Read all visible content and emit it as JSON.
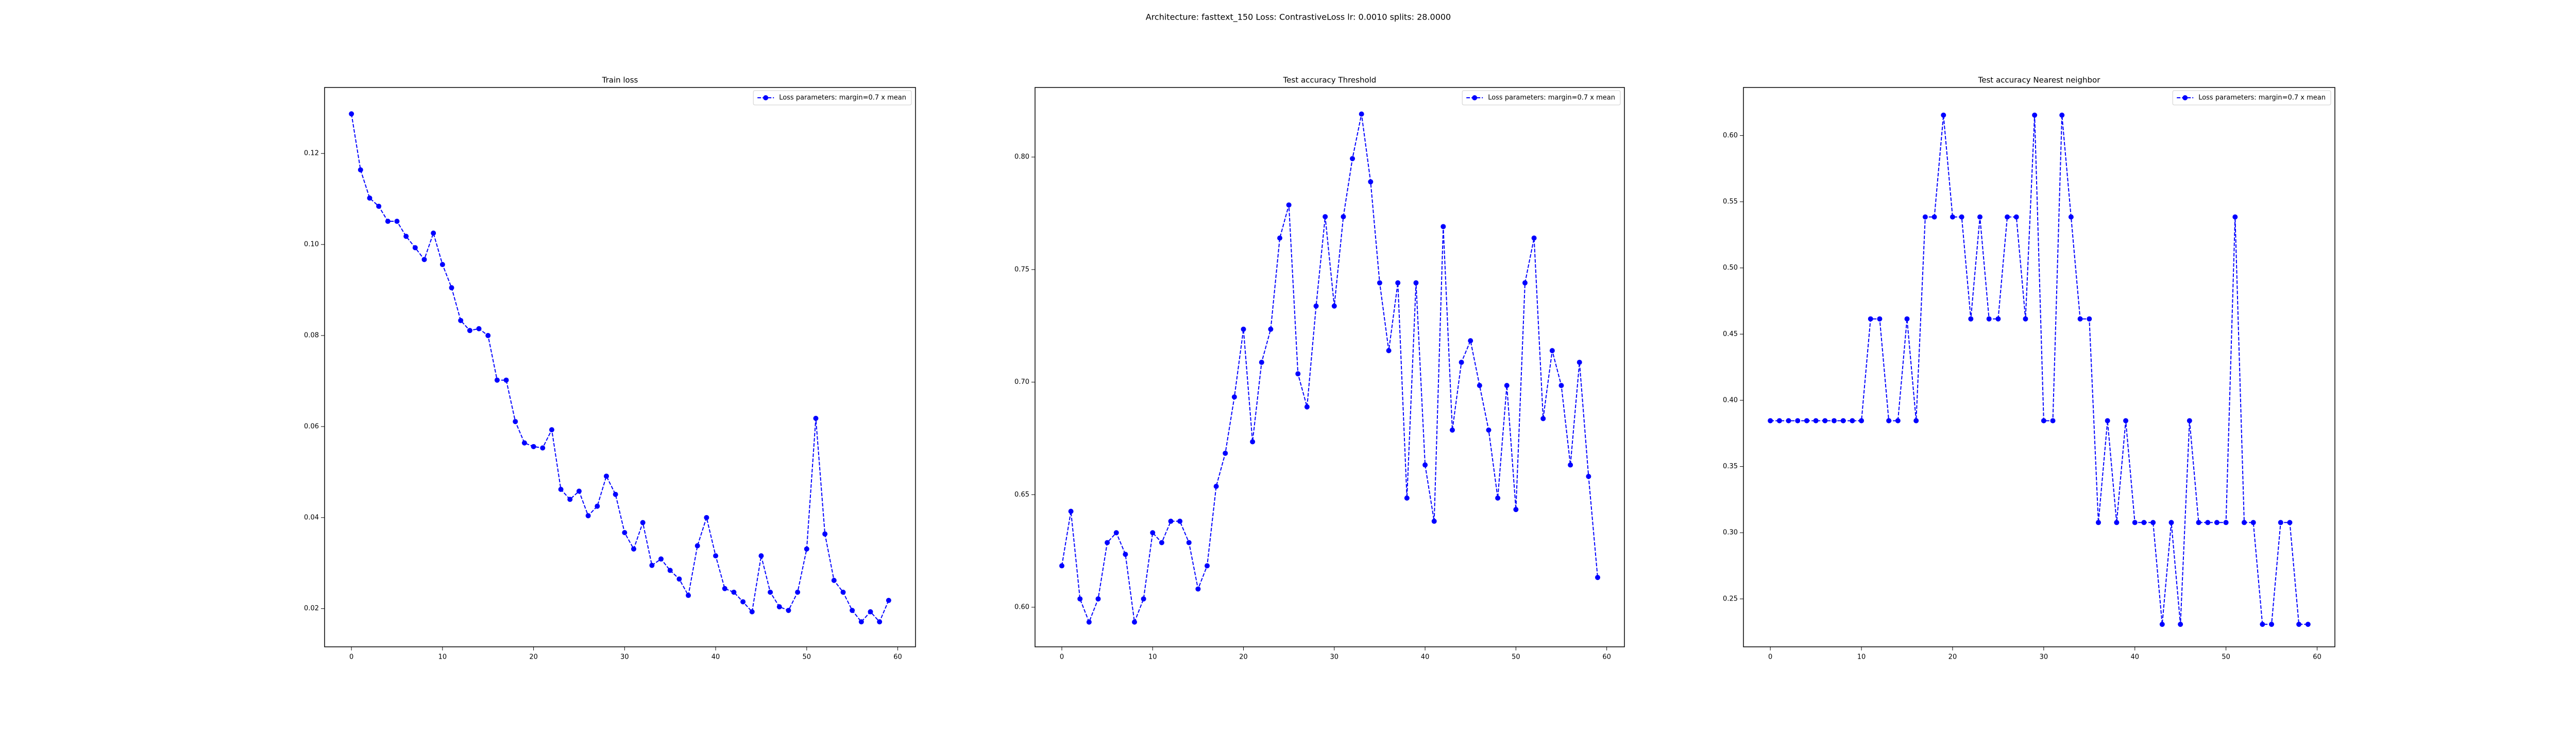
{
  "title": "Architecture: fasttext_150 Loss: ContrastiveLoss lr: 0.0010 splits: 28.0000",
  "chart_data": [
    {
      "type": "line",
      "title": "Train loss",
      "legend": "upper right",
      "linestyle": "dashed",
      "marker": "o",
      "xlim": [
        -2.95,
        61.95
      ],
      "xticks": [
        0,
        10,
        20,
        30,
        40,
        50,
        60
      ],
      "ylim": [
        0.0116,
        0.1345
      ],
      "yticks": [
        0.02,
        0.04,
        0.06,
        0.08,
        {
          "value": 0.1,
          "label": "0.10"
        },
        0.12
      ],
      "x": [
        0,
        1,
        2,
        3,
        4,
        5,
        6,
        7,
        8,
        9,
        10,
        11,
        12,
        13,
        14,
        15,
        16,
        17,
        18,
        19,
        20,
        21,
        22,
        23,
        24,
        25,
        26,
        27,
        28,
        29,
        30,
        31,
        32,
        33,
        34,
        35,
        36,
        37,
        38,
        39,
        40,
        41,
        42,
        43,
        44,
        45,
        46,
        47,
        48,
        49,
        50,
        51,
        52,
        53,
        54,
        55,
        56,
        57,
        58,
        59
      ],
      "series": [
        {
          "name": "Loss parameters: margin=0.7 x mean",
          "color": "blue",
          "values": [
            0.1287,
            0.1164,
            0.1102,
            0.1084,
            0.1051,
            0.1051,
            0.1018,
            0.0993,
            0.0967,
            0.1025,
            0.0956,
            0.0905,
            0.0833,
            0.0811,
            0.0815,
            0.08,
            0.0702,
            0.0702,
            0.0611,
            0.0564,
            0.0556,
            0.0553,
            0.0593,
            0.0462,
            0.044,
            0.0458,
            0.0404,
            0.0425,
            0.0491,
            0.0451,
            0.0367,
            0.0331,
            0.0389,
            0.0295,
            0.0309,
            0.0284,
            0.0265,
            0.0229,
            0.0338,
            0.04,
            0.0316,
            0.0244,
            0.0236,
            0.0215,
            0.0193,
            0.0316,
            0.0236,
            0.0204,
            0.0196,
            0.0236,
            0.0331,
            0.0618,
            0.0364,
            0.0262,
            0.0236,
            0.0196,
            0.0171,
            0.0193,
            0.0171,
            0.0218
          ]
        }
      ]
    },
    {
      "type": "line",
      "title": "Test accuracy Threshold",
      "legend": "upper right",
      "linestyle": "dashed",
      "marker": "o",
      "xlim": [
        -2.95,
        61.95
      ],
      "xticks": [
        0,
        10,
        20,
        30,
        40,
        50,
        60
      ],
      "ylim": [
        0.5824,
        0.8309
      ],
      "yticks": [
        {
          "value": 0.6,
          "label": "0.60"
        },
        0.65,
        {
          "value": 0.7,
          "label": "0.70"
        },
        0.75,
        {
          "value": 0.8,
          "label": "0.80"
        }
      ],
      "x": [
        0,
        1,
        2,
        3,
        4,
        5,
        6,
        7,
        8,
        9,
        10,
        11,
        12,
        13,
        14,
        15,
        16,
        17,
        18,
        19,
        20,
        21,
        22,
        23,
        24,
        25,
        26,
        27,
        28,
        29,
        30,
        31,
        32,
        33,
        34,
        35,
        36,
        37,
        38,
        39,
        40,
        41,
        42,
        43,
        44,
        45,
        46,
        47,
        48,
        49,
        50,
        51,
        52,
        53,
        54,
        55,
        56,
        57,
        58,
        59
      ],
      "series": [
        {
          "name": "Loss parameters: margin=0.7 x mean",
          "color": "blue",
          "values": [
            0.6184,
            0.6426,
            0.6037,
            0.5934,
            0.6037,
            0.6287,
            0.6331,
            0.6235,
            0.5934,
            0.6037,
            0.6331,
            0.6287,
            0.6382,
            0.6382,
            0.6287,
            0.6081,
            0.6184,
            0.6537,
            0.6684,
            0.6934,
            0.7235,
            0.6735,
            0.7088,
            0.7235,
            0.764,
            0.7787,
            0.7037,
            0.689,
            0.7338,
            0.7735,
            0.7338,
            0.7735,
            0.7993,
            0.8191,
            0.789,
            0.7441,
            0.714,
            0.7441,
            0.6485,
            0.7441,
            0.6632,
            0.6382,
            0.7691,
            0.6787,
            0.7088,
            0.7184,
            0.6985,
            0.6787,
            0.6485,
            0.6985,
            0.6434,
            0.7441,
            0.764,
            0.6838,
            0.714,
            0.6985,
            0.6632,
            0.7088,
            0.6581,
            0.6132
          ]
        }
      ]
    },
    {
      "type": "line",
      "title": "Test accuracy Nearest neighbor",
      "legend": "upper right",
      "linestyle": "dashed",
      "marker": "o",
      "xlim": [
        -2.95,
        61.95
      ],
      "xticks": [
        0,
        10,
        20,
        30,
        40,
        50,
        60
      ],
      "ylim": [
        0.2138,
        0.6363
      ],
      "yticks": [
        0.25,
        {
          "value": 0.3,
          "label": "0.30"
        },
        0.35,
        {
          "value": 0.4,
          "label": "0.40"
        },
        0.45,
        {
          "value": 0.5,
          "label": "0.50"
        },
        0.55,
        {
          "value": 0.6,
          "label": "0.60"
        }
      ],
      "x": [
        0,
        1,
        2,
        3,
        4,
        5,
        6,
        7,
        8,
        9,
        10,
        11,
        12,
        13,
        14,
        15,
        16,
        17,
        18,
        19,
        20,
        21,
        22,
        23,
        24,
        25,
        26,
        27,
        28,
        29,
        30,
        31,
        32,
        33,
        34,
        35,
        36,
        37,
        38,
        39,
        40,
        41,
        42,
        43,
        44,
        45,
        46,
        47,
        48,
        49,
        50,
        51,
        52,
        53,
        54,
        55,
        56,
        57,
        58,
        59
      ],
      "series": [
        {
          "name": "Loss parameters: margin=0.7 x mean",
          "color": "blue",
          "values": [
            0.3846,
            0.3846,
            0.3846,
            0.3846,
            0.3846,
            0.3846,
            0.3846,
            0.3846,
            0.3846,
            0.3846,
            0.3846,
            0.4615,
            0.4615,
            0.3846,
            0.3846,
            0.4615,
            0.3846,
            0.5385,
            0.5385,
            0.6154,
            0.5385,
            0.5385,
            0.4615,
            0.5385,
            0.4615,
            0.4615,
            0.5385,
            0.5385,
            0.4615,
            0.6154,
            0.3846,
            0.3846,
            0.6154,
            0.5385,
            0.4615,
            0.4615,
            0.3077,
            0.3846,
            0.3077,
            0.3846,
            0.3077,
            0.3077,
            0.3077,
            0.2308,
            0.3077,
            0.2308,
            0.3846,
            0.3077,
            0.3077,
            0.3077,
            0.3077,
            0.5385,
            0.3077,
            0.3077,
            0.2308,
            0.2308,
            0.3077,
            0.3077,
            0.2308,
            0.2308
          ]
        }
      ]
    }
  ]
}
